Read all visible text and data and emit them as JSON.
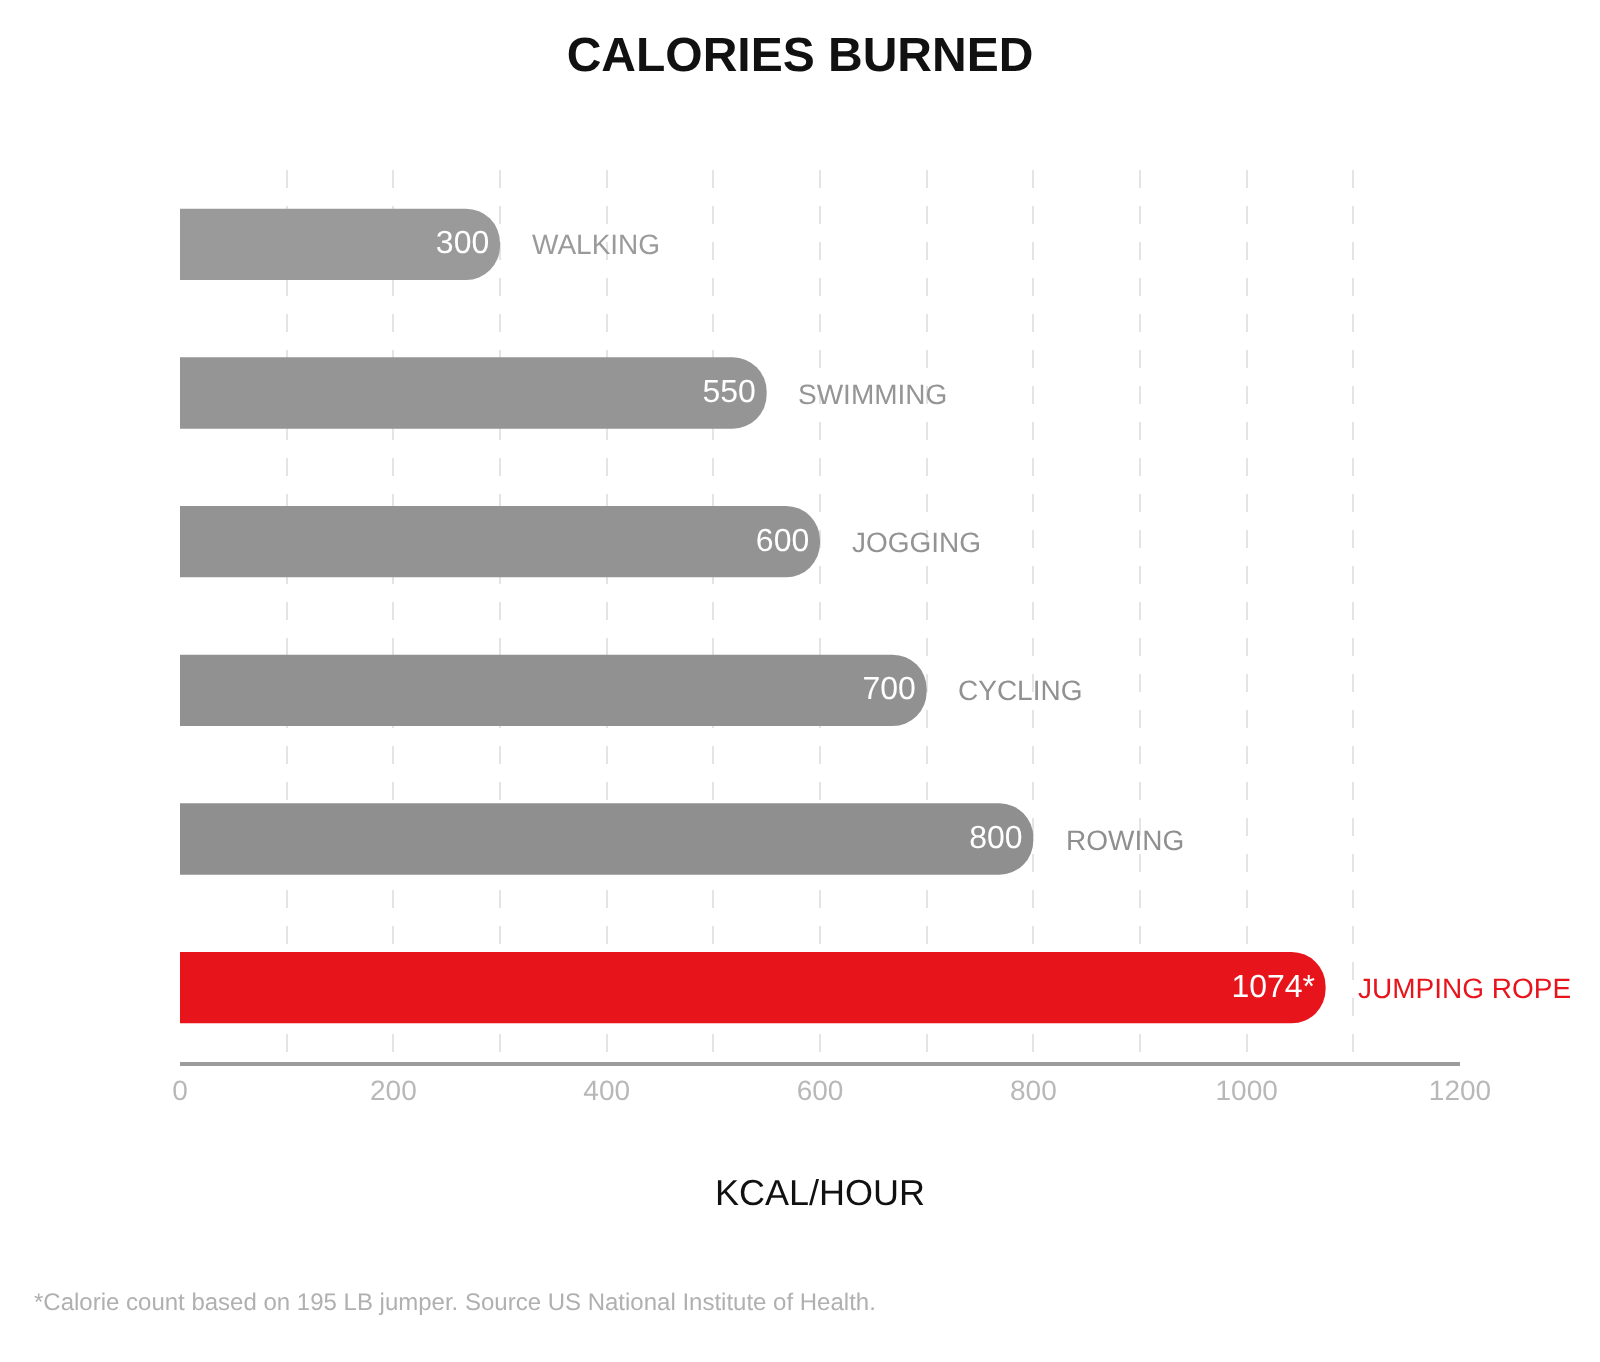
{
  "chart_data": {
    "type": "bar",
    "orientation": "horizontal",
    "title": "CALORIES BURNED",
    "xlabel": "KCAL/HOUR",
    "categories": [
      "WALKING",
      "SWIMMING",
      "JOGGING",
      "CYCLING",
      "ROWING",
      "JUMPING ROPE"
    ],
    "values": [
      300,
      550,
      600,
      700,
      800,
      1074
    ],
    "colors": [
      "#9a9a9a",
      "#959595",
      "#939393",
      "#919191",
      "#8f8f8f",
      "#e8141c"
    ],
    "value_labels": [
      "300",
      "550",
      "600",
      "700",
      "800",
      "1074*"
    ],
    "xlim": [
      0,
      1200
    ],
    "xticks": [
      0,
      {
        "value": 100,
        "label": null
      },
      200,
      {
        "value": 300,
        "label": null
      },
      400,
      {
        "value": 500,
        "label": null
      },
      600,
      {
        "value": 700,
        "label": null
      },
      800,
      {
        "value": 900,
        "label": null
      },
      1000,
      {
        "value": 1100,
        "label": null
      },
      1200
    ],
    "grid": "x",
    "annotations": [
      "*Calorie count based on 195 LB jumper. Source US National Institute of Health."
    ]
  }
}
